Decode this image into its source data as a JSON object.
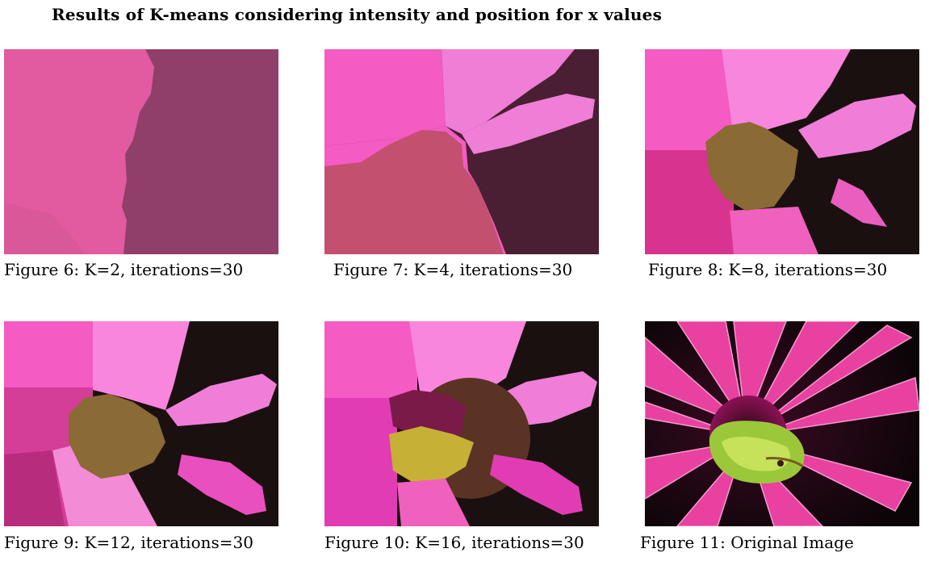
{
  "title": "Results of K-means considering intensity and position for x values",
  "figures": [
    {
      "caption": "Figure 6: K=2, iterations=30"
    },
    {
      "caption": "Figure 7: K=4, iterations=30"
    },
    {
      "caption": "Figure 8: K=8, iterations=30"
    },
    {
      "caption": "Figure 9: K=12, iterations=30"
    },
    {
      "caption": "Figure 10: K=16, iterations=30"
    },
    {
      "caption": "Figure 11: Original Image"
    }
  ],
  "colors": {
    "k2_light": "#e25a9f",
    "k2_dark": "#8f3f6a",
    "k4_pink": "#f45bc3",
    "k4_light": "#ef7ed6",
    "k4_rose": "#c3506f",
    "k4_dark": "#4a1f33",
    "center_brown": "#8a6a35",
    "center_yellow": "#c7b036",
    "magenta": "#e23cb4",
    "black": "#1a1010"
  }
}
